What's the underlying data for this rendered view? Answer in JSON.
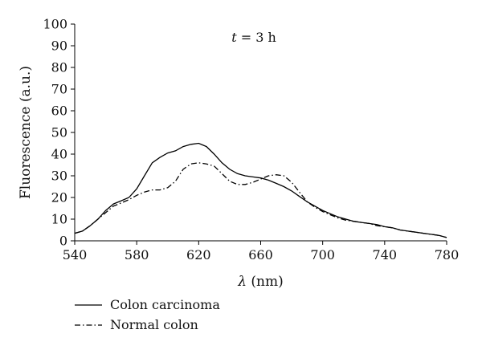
{
  "chart_data": {
    "type": "line",
    "title": "",
    "annotation": {
      "italic": "t",
      "rest": " = 3 h"
    },
    "xlabel": {
      "symbol": "λ",
      "unit": " (nm)"
    },
    "ylabel": "Fluorescence (a.u.)",
    "xlim": [
      540,
      780
    ],
    "ylim": [
      0,
      100
    ],
    "xticks": [
      540,
      580,
      620,
      660,
      700,
      740,
      780
    ],
    "yticks": [
      0,
      10,
      20,
      30,
      40,
      50,
      60,
      70,
      80,
      90,
      100
    ],
    "grid": false,
    "legend_position": "below",
    "series": [
      {
        "name": "Colon carcinoma",
        "style": "solid",
        "x": [
          540,
          545,
          550,
          555,
          560,
          565,
          570,
          575,
          580,
          585,
          590,
          595,
          600,
          605,
          610,
          615,
          620,
          625,
          630,
          635,
          640,
          645,
          650,
          655,
          660,
          665,
          670,
          675,
          680,
          685,
          690,
          695,
          700,
          705,
          710,
          715,
          720,
          725,
          730,
          735,
          740,
          745,
          750,
          755,
          760,
          765,
          770,
          775,
          780
        ],
        "y": [
          3.5,
          4.5,
          7,
          10,
          14,
          17,
          18.5,
          20,
          24,
          30,
          36,
          38.5,
          40.5,
          41.5,
          43.5,
          44.5,
          45,
          43.5,
          40,
          36,
          33,
          31,
          30,
          29.5,
          29,
          28,
          26.5,
          25,
          23,
          20.5,
          18,
          16,
          14,
          12.5,
          11,
          10,
          9,
          8.5,
          8,
          7.5,
          6.5,
          6,
          5,
          4.5,
          4,
          3.5,
          3,
          2.5,
          1.5
        ]
      },
      {
        "name": "Normal colon",
        "style": "dashdot",
        "x": [
          540,
          545,
          550,
          555,
          560,
          565,
          570,
          575,
          580,
          585,
          590,
          595,
          600,
          605,
          610,
          615,
          620,
          625,
          630,
          635,
          640,
          645,
          650,
          655,
          660,
          665,
          670,
          675,
          680,
          685,
          690,
          695,
          700,
          705,
          710,
          715,
          720,
          725,
          730,
          735,
          740,
          745,
          750,
          755,
          760,
          765,
          770,
          775,
          780
        ],
        "y": [
          3.5,
          4.5,
          7,
          10,
          13,
          16,
          17.5,
          19,
          21,
          22.5,
          23.5,
          23.5,
          24.5,
          27.5,
          33,
          35.5,
          36,
          35.5,
          34.5,
          31,
          27.5,
          26,
          26,
          27,
          28.5,
          30,
          30.5,
          30,
          27,
          22.5,
          18,
          15.5,
          13.5,
          12,
          10.5,
          9.5,
          9,
          8.5,
          8,
          7,
          6.5,
          6,
          5,
          4.5,
          4,
          3.5,
          3,
          2.5,
          1.5
        ]
      }
    ]
  }
}
